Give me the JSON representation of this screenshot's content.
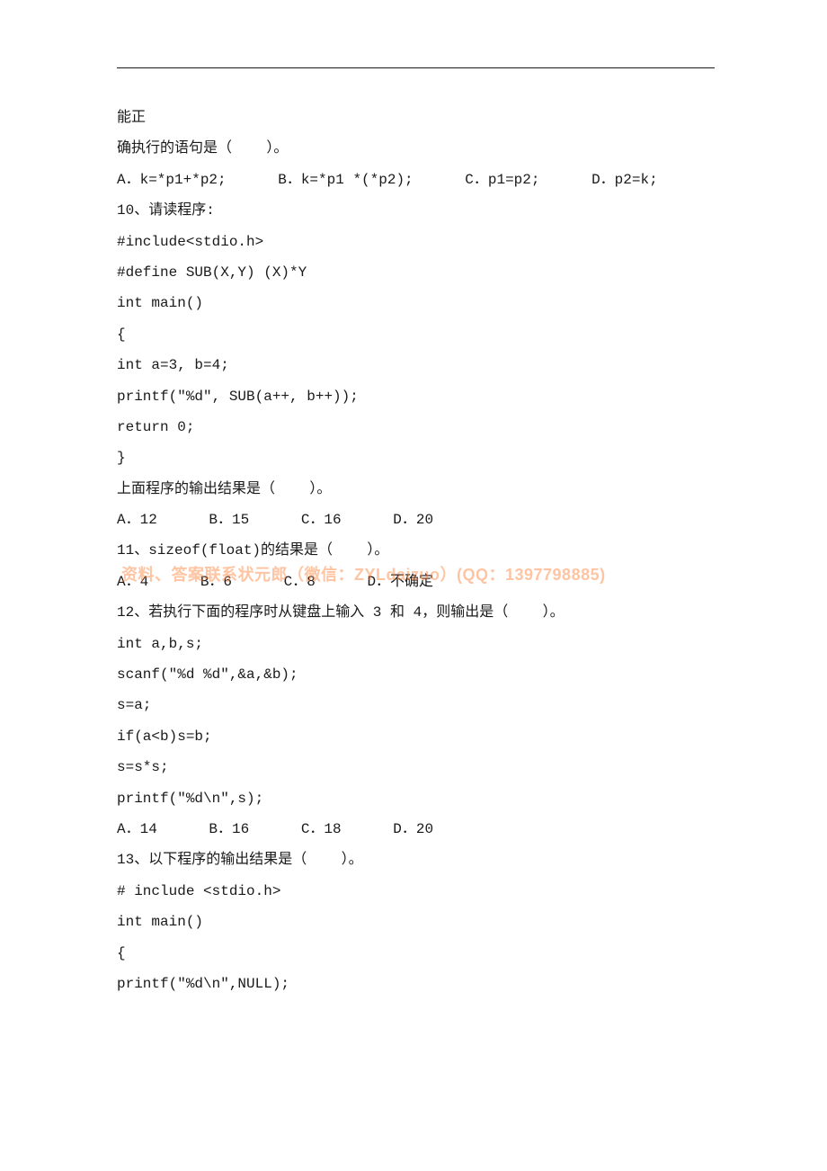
{
  "watermark": "资料、答案联系状元郎（微信：ZYLdaizuo）(QQ：1397798885)",
  "lines": [
    "能正",
    "确执行的语句是（    ）。",
    "A．k=*p1+*p2;      B．k=*p1 *(*p2);      C．p1=p2;      D．p2=k;",
    "10、请读程序:",
    "#include<stdio.h>",
    "#define SUB(X,Y) (X)*Y",
    "int main()",
    "{",
    "int a=3, b=4;",
    "printf(\"%d\", SUB(a++, b++));",
    "return 0;",
    "}",
    "上面程序的输出结果是（    ）。",
    "A．12      B．15      C．16      D．20",
    "11、sizeof(float)的结果是（    ）。",
    "A．4      B．6      C．8      D．不确定",
    "12、若执行下面的程序时从键盘上输入 3 和 4，则输出是（    ）。",
    "int a,b,s;",
    "scanf(\"%d %d\",&a,&b);",
    "s=a;",
    "if(a<b)s=b;",
    "s=s*s;",
    "printf(\"%d\\n\",s);",
    "A．14      B．16      C．18      D．20",
    "13、以下程序的输出结果是（    ）。",
    "# include <stdio.h>",
    "int main()",
    "{",
    "printf(\"%d\\n\",NULL);"
  ]
}
